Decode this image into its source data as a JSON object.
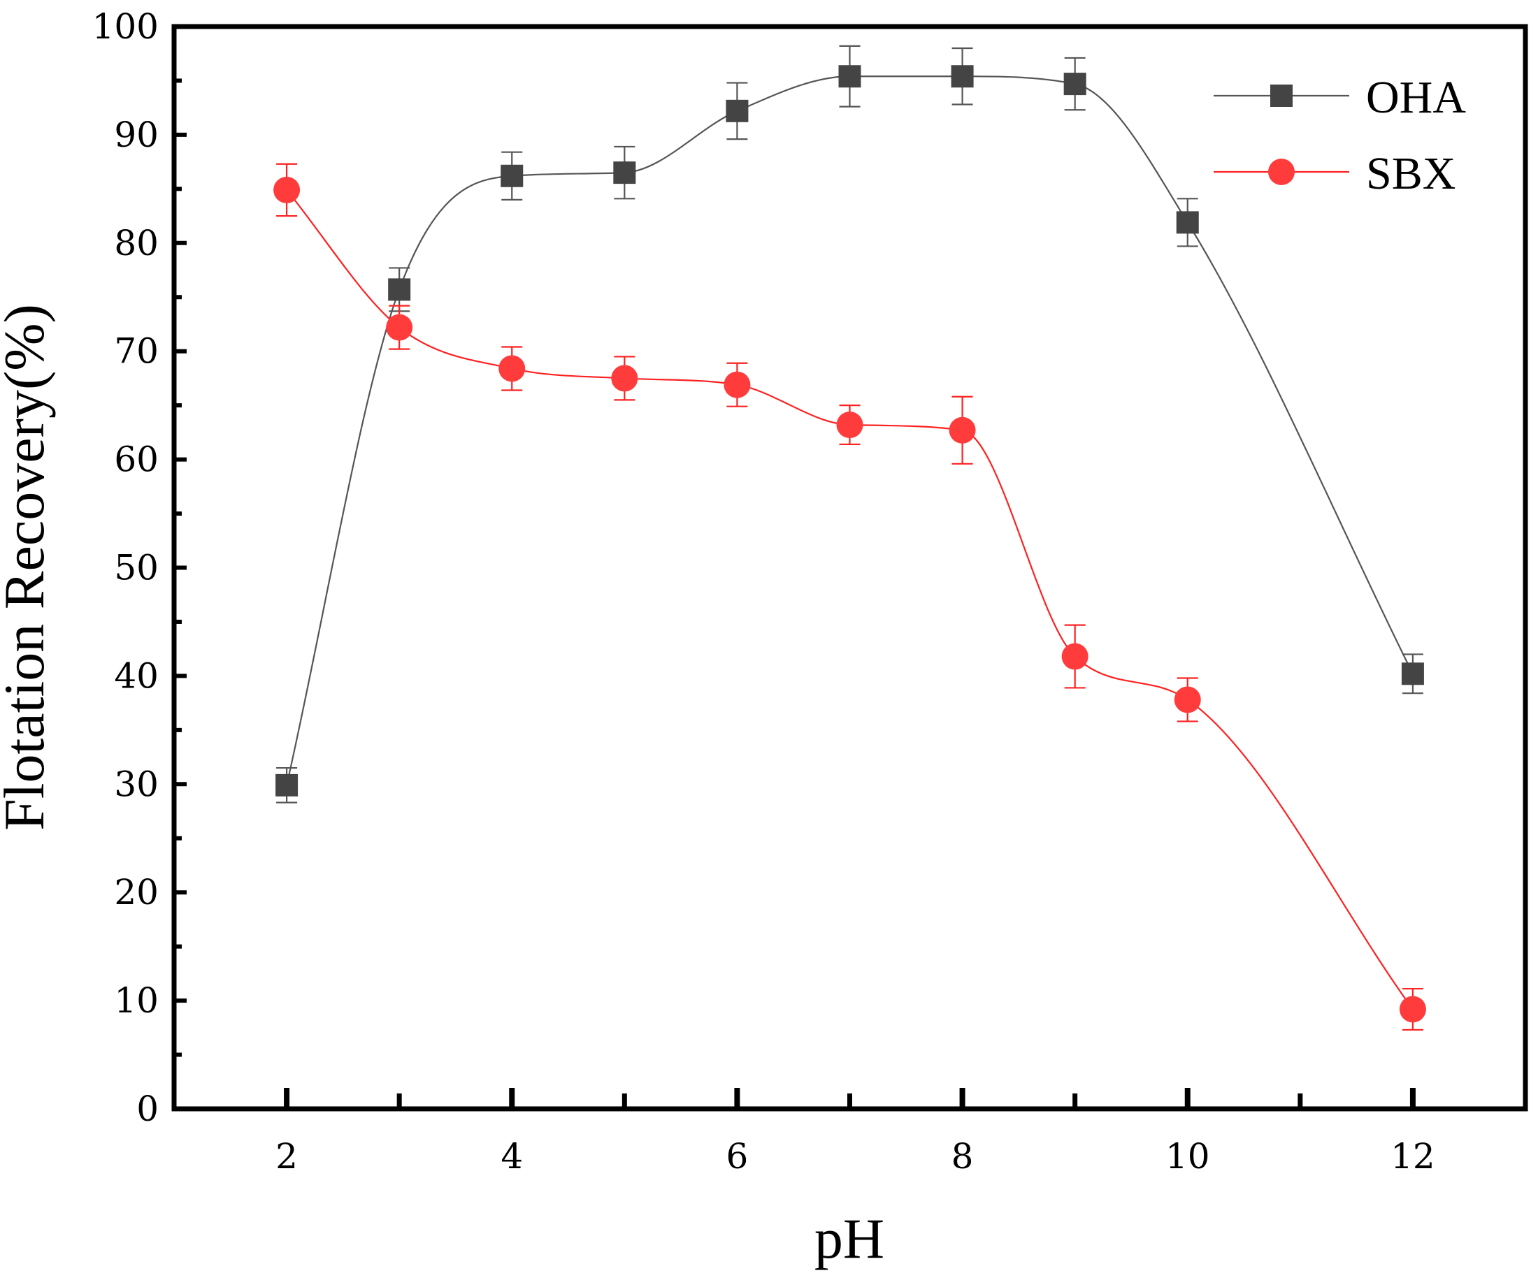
{
  "chart_data": {
    "type": "line",
    "title": "",
    "xlabel": "pH",
    "ylabel": "Flotation Recovery(%)",
    "xlim": [
      1,
      13
    ],
    "ylim": [
      0,
      100
    ],
    "xticks": [
      2,
      4,
      6,
      8,
      10,
      12
    ],
    "xminor": [
      3,
      5,
      7,
      9,
      11
    ],
    "yticks": [
      0,
      10,
      20,
      30,
      40,
      50,
      60,
      70,
      80,
      90,
      100
    ],
    "x": [
      2,
      3,
      4,
      5,
      6,
      7,
      8,
      9,
      10,
      12
    ],
    "legend_position": "top-right",
    "series": [
      {
        "name": "OHA",
        "color": "#444444",
        "line_color": "#555555",
        "marker": "square",
        "values": [
          29.9,
          75.7,
          86.2,
          86.5,
          92.2,
          95.4,
          95.4,
          94.7,
          81.9,
          40.2
        ],
        "errors": [
          1.6,
          2.0,
          2.2,
          2.4,
          2.6,
          2.8,
          2.6,
          2.4,
          2.2,
          1.8
        ]
      },
      {
        "name": "SBX",
        "color": "#ff3b3b",
        "line_color": "#ff2020",
        "marker": "circle",
        "values": [
          84.9,
          72.2,
          68.4,
          67.5,
          66.9,
          63.2,
          62.7,
          41.8,
          37.8,
          9.2
        ],
        "errors": [
          2.4,
          2.0,
          2.0,
          2.0,
          2.0,
          1.8,
          3.1,
          2.9,
          2.0,
          1.9
        ]
      }
    ]
  }
}
